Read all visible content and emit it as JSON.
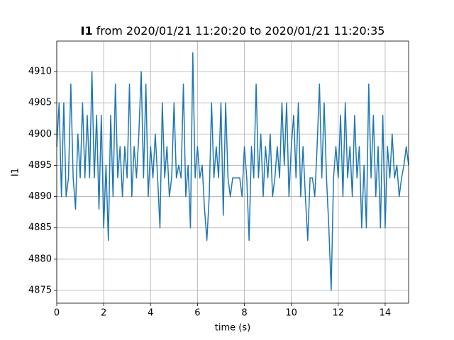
{
  "chart_data": {
    "type": "line",
    "title": {
      "name": "I1",
      "text": "from 2020/01/21 11:20:20 to 2020/01/21 11:20:35"
    },
    "xlabel": "time (s)",
    "ylabel": "I1",
    "xlim": [
      0,
      15
    ],
    "xticks": [
      0,
      2,
      4,
      6,
      8,
      10,
      12,
      14
    ],
    "ylim": [
      4872.96,
      4914.87
    ],
    "yticks": [
      4875,
      4880,
      4885,
      4890,
      4895,
      4900,
      4905,
      4910
    ],
    "grid": true,
    "x": [
      0.0,
      0.1,
      0.2,
      0.3,
      0.4,
      0.5,
      0.6,
      0.7,
      0.8,
      0.9,
      1.0,
      1.1,
      1.2,
      1.3,
      1.4,
      1.5,
      1.6,
      1.7,
      1.8,
      1.9,
      2.0,
      2.1,
      2.2,
      2.3,
      2.4,
      2.5,
      2.6,
      2.7,
      2.8,
      2.9,
      3.0,
      3.1,
      3.2,
      3.3,
      3.4,
      3.5,
      3.6,
      3.7,
      3.8,
      3.9,
      4.0,
      4.1,
      4.2,
      4.3,
      4.4,
      4.5,
      4.6,
      4.7,
      4.8,
      4.9,
      5.0,
      5.1,
      5.2,
      5.3,
      5.4,
      5.5,
      5.6,
      5.7,
      5.8,
      5.9,
      6.0,
      6.1,
      6.2,
      6.3,
      6.4,
      6.5,
      6.6,
      6.7,
      6.8,
      6.9,
      7.0,
      7.1,
      7.2,
      7.3,
      7.4,
      7.5,
      7.6,
      7.7,
      7.8,
      7.9,
      8.0,
      8.1,
      8.2,
      8.3,
      8.4,
      8.5,
      8.6,
      8.7,
      8.8,
      8.9,
      9.0,
      9.1,
      9.2,
      9.3,
      9.4,
      9.5,
      9.6,
      9.7,
      9.8,
      9.9,
      10.0,
      10.1,
      10.2,
      10.3,
      10.4,
      10.5,
      10.6,
      10.7,
      10.8,
      10.9,
      11.0,
      11.1,
      11.2,
      11.3,
      11.4,
      11.5,
      11.6,
      11.7,
      11.8,
      11.9,
      12.0,
      12.1,
      12.2,
      12.3,
      12.4,
      12.5,
      12.6,
      12.7,
      12.8,
      12.9,
      13.0,
      13.1,
      13.2,
      13.3,
      13.4,
      13.5,
      13.6,
      13.7,
      13.8,
      13.9,
      14.0,
      14.1,
      14.2,
      14.3,
      14.4,
      14.5,
      14.6,
      14.7,
      14.8,
      14.9,
      15.0
    ],
    "series": [
      {
        "color": "#1f77b4",
        "values": [
          4898,
          4905,
          4890,
          4905,
          4890,
          4893,
          4908,
          4893,
          4888,
          4900,
          4893,
          4905,
          4893,
          4903,
          4893,
          4910,
          4893,
          4903,
          4888,
          4903,
          4885,
          4895,
          4883,
          4903,
          4890,
          4908,
          4893,
          4898,
          4890,
          4898,
          4893,
          4908,
          4890,
          4898,
          4893,
          4900,
          4910,
          4893,
          4908,
          4890,
          4898,
          4893,
          4900,
          4893,
          4885,
          4905,
          4893,
          4898,
          4890,
          4893,
          4905,
          4893,
          4895,
          4893,
          4908,
          4890,
          4895,
          4885,
          4913,
          4893,
          4898,
          4893,
          4895,
          4888,
          4883,
          4890,
          4905,
          4893,
          4898,
          4893,
          4905,
          4887,
          4905,
          4893,
          4890,
          4893,
          4893,
          4893,
          4893,
          4890,
          4898,
          4893,
          4883,
          4898,
          4893,
          4908,
          4893,
          4900,
          4890,
          4898,
          4893,
          4900,
          4890,
          4893,
          4898,
          4893,
          4905,
          4895,
          4905,
          4890,
          4898,
          4903,
          4893,
          4905,
          4890,
          4898,
          4890,
          4883,
          4893,
          4893,
          4890,
          4898,
          4908,
          4893,
          4905,
          4893,
          4885,
          4875,
          4893,
          4898,
          4893,
          4903,
          4890,
          4905,
          4893,
          4898,
          4890,
          4903,
          4893,
          4898,
          4885,
          4895,
          4885,
          4908,
          4893,
          4903,
          4890,
          4898,
          4885,
          4903,
          4885,
          4898,
          4893,
          4900,
          4893,
          4895,
          4890,
          4893,
          4895,
          4898,
          4895
        ]
      }
    ]
  }
}
